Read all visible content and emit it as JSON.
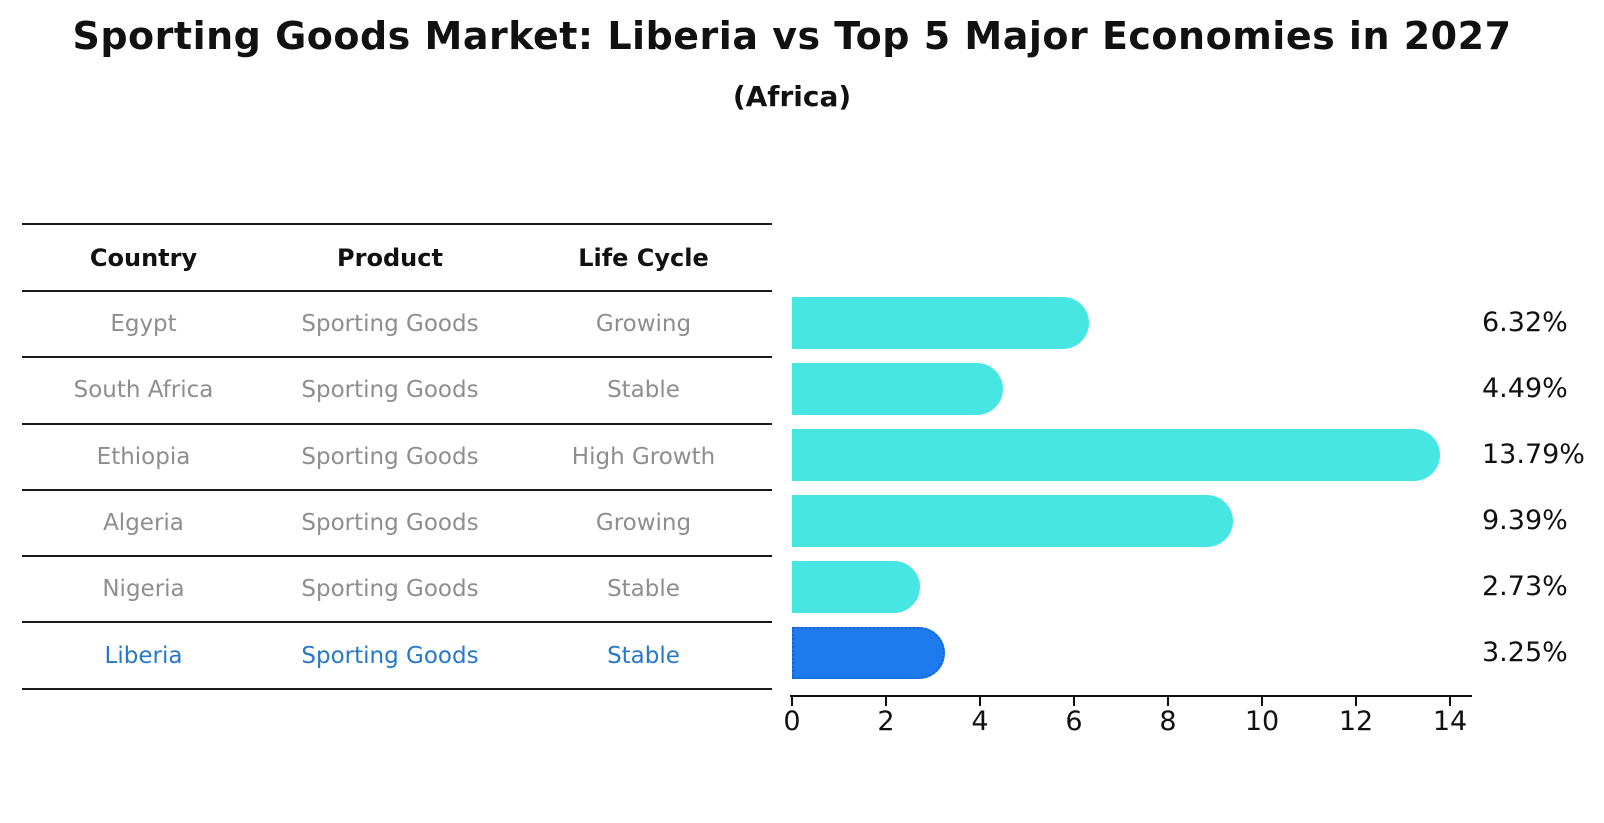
{
  "header": {
    "title": "Sporting Goods Market: Liberia vs Top 5 Major Economies in 2027",
    "subtitle": "(Africa)"
  },
  "table": {
    "columns": [
      "Country",
      "Product",
      "Life Cycle"
    ],
    "rows": [
      {
        "country": "Egypt",
        "product": "Sporting Goods",
        "life_cycle": "Growing",
        "highlight": false
      },
      {
        "country": "South Africa",
        "product": "Sporting Goods",
        "life_cycle": "Stable",
        "highlight": false
      },
      {
        "country": "Ethiopia",
        "product": "Sporting Goods",
        "life_cycle": "High Growth",
        "highlight": false
      },
      {
        "country": "Algeria",
        "product": "Sporting Goods",
        "life_cycle": "Growing",
        "highlight": false
      },
      {
        "country": "Nigeria",
        "product": "Sporting Goods",
        "life_cycle": "Stable",
        "highlight": false
      },
      {
        "country": "Liberia",
        "product": "Sporting Goods",
        "life_cycle": "Stable",
        "highlight": true
      }
    ]
  },
  "chart_data": {
    "type": "bar",
    "orientation": "horizontal",
    "title": "Sporting Goods Market: Liberia vs Top 5 Major Economies in 2027",
    "subtitle": "(Africa)",
    "categories": [
      "Egypt",
      "South Africa",
      "Ethiopia",
      "Algeria",
      "Nigeria",
      "Liberia"
    ],
    "values": [
      6.32,
      4.49,
      13.79,
      9.39,
      2.73,
      3.25
    ],
    "labels": [
      "6.32%",
      "4.49%",
      "13.79%",
      "9.39%",
      "2.73%",
      "3.25%"
    ],
    "unit": "%",
    "xticks": [
      0,
      2,
      4,
      6,
      8,
      10,
      12,
      14
    ],
    "xlim": [
      0,
      14.5
    ],
    "grid": false,
    "legend": false,
    "bar_color": "#48E6E2",
    "highlight_index": 5,
    "highlight_color": "#1E7BED",
    "highlight_border_color": "#1766D0",
    "highlight_border_style": "dotted",
    "highlight_text_color": "#2878C9",
    "table_text_color": "#8E8E8E",
    "axis_color": "#111111"
  }
}
